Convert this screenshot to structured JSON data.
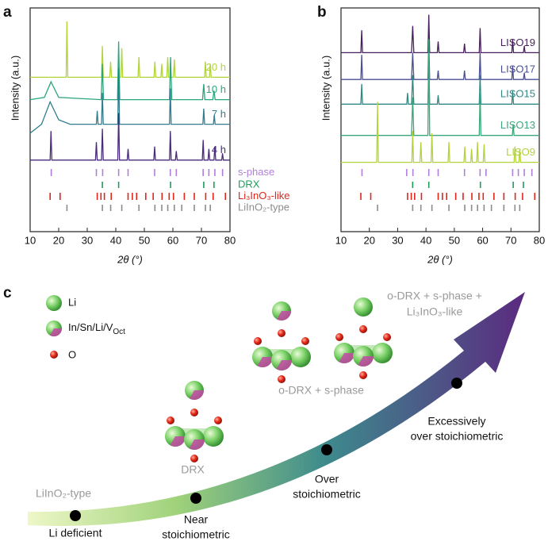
{
  "chart_data": [
    {
      "type": "line",
      "panel_label": "a",
      "xlabel": "2θ (°)",
      "ylabel": "Intensity (a.u.)",
      "xlim": [
        10,
        80
      ],
      "xticks": [
        10,
        20,
        30,
        40,
        50,
        60,
        70,
        80
      ],
      "ylim": [
        0,
        100
      ],
      "series": [
        {
          "name": "20 h",
          "color": "#b3d33a",
          "x": [
            10,
            22.6,
            22.9,
            23.2,
            35,
            35.3,
            35.6,
            37.9,
            38.2,
            38.5,
            41.8,
            42.1,
            42.4,
            47.8,
            48.1,
            48.4,
            53.4,
            53.7,
            54,
            55.8,
            56.1,
            56.4,
            57.9,
            58.2,
            58.5,
            60.2,
            60.5,
            60.8,
            71.1,
            71.4,
            71.7,
            72.8,
            73.1,
            73.4,
            80
          ],
          "values": [
            69,
            69,
            94,
            69,
            69,
            83,
            69,
            69,
            76,
            69,
            69,
            82,
            69,
            69,
            78,
            69,
            69,
            76,
            69,
            69,
            75,
            69,
            69,
            78,
            69,
            69,
            77,
            69,
            69,
            76,
            69,
            69,
            75,
            69,
            69
          ]
        },
        {
          "name": "10 h",
          "color": "#29a67a",
          "x": [
            10,
            15,
            17.3,
            20,
            34.9,
            35.3,
            35.7,
            40.6,
            41,
            41.4,
            58.8,
            59.2,
            59.6,
            70.4,
            70.8,
            71.2,
            74,
            74.4,
            74.8,
            80
          ],
          "values": [
            59,
            60,
            67,
            60,
            59,
            75,
            59,
            59,
            85,
            59,
            59,
            78,
            59,
            59,
            66,
            59,
            59,
            63,
            59,
            59
          ]
        },
        {
          "name": "7 h",
          "color": "#2f7d8f",
          "x": [
            10,
            14,
            17,
            20,
            24,
            33.2,
            33.5,
            33.8,
            35,
            35.3,
            35.6,
            40.7,
            41,
            41.3,
            58.8,
            59.1,
            59.4,
            70.5,
            70.8,
            71.1,
            74.2,
            74.5,
            74.8,
            80
          ],
          "values": [
            44,
            48,
            58,
            50,
            48,
            48,
            54,
            48,
            48,
            62,
            48,
            48,
            73,
            48,
            48,
            64,
            48,
            48,
            55,
            48,
            48,
            52,
            48,
            48
          ]
        },
        {
          "name": "4 h",
          "color": "#4a2b7c",
          "x": [
            10,
            17,
            17.3,
            17.6,
            32.9,
            33.2,
            33.5,
            35,
            35.3,
            35.6,
            40.7,
            41,
            41.3,
            44,
            44.3,
            44.6,
            53.3,
            53.6,
            53.9,
            58.8,
            59.1,
            59.4,
            60.9,
            61.2,
            61.5,
            70.3,
            70.6,
            70.9,
            72.3,
            72.6,
            72.9,
            74.4,
            74.7,
            75,
            77.1,
            77.4,
            77.7,
            80
          ],
          "values": [
            32,
            32,
            45,
            32,
            32,
            40,
            32,
            32,
            46,
            32,
            32,
            53,
            32,
            32,
            37,
            32,
            32,
            38,
            32,
            32,
            45,
            32,
            32,
            36,
            32,
            32,
            41,
            32,
            32,
            37,
            32,
            32,
            38,
            32,
            32,
            35,
            32,
            32
          ]
        }
      ],
      "references": [
        {
          "name": "s-phase",
          "color": "#b07fdc",
          "x": [
            17.4,
            33.2,
            35.4,
            41,
            44.3,
            53.6,
            59.1,
            61.2,
            70.6,
            72.6,
            74.7,
            77.4
          ]
        },
        {
          "name": "DRX",
          "color": "#1f9c5a",
          "x": [
            35.3,
            41,
            59.2,
            70.8,
            74.4
          ]
        },
        {
          "name": "Li₃InO₃-like",
          "color": "#e0261b",
          "x": [
            17,
            20.5,
            33.5,
            34.8,
            36,
            38.4,
            44.3,
            45.8,
            47.3,
            50.5,
            53.1,
            56.2,
            58.7,
            60.2,
            64,
            67.5,
            71.5,
            74.1,
            78.4
          ]
        },
        {
          "name": "LiInO₂-type",
          "color": "#8c8c8c",
          "x": [
            22.9,
            35.3,
            38.2,
            42.1,
            48.1,
            53.7,
            56.1,
            58.2,
            60.5,
            63.1,
            67.5,
            71.4,
            73.1
          ]
        }
      ]
    },
    {
      "type": "line",
      "panel_label": "b",
      "xlabel": "2θ (°)",
      "ylabel": "Intensity (a.u.)",
      "xlim": [
        10,
        80
      ],
      "xticks": [
        10,
        20,
        30,
        40,
        50,
        60,
        70,
        80
      ],
      "ylim": [
        0,
        100
      ],
      "series": [
        {
          "name": "LISO19",
          "color": "#4a1f5e",
          "x": [
            10,
            17,
            17.3,
            17.6,
            34.9,
            35.3,
            35.7,
            40.7,
            41,
            41.3,
            44,
            44.3,
            44.6,
            53.3,
            53.6,
            53.9,
            58.8,
            59.1,
            59.4,
            70.3,
            70.6,
            70.9,
            74.4,
            74.7,
            75,
            80
          ],
          "values": [
            80,
            80,
            90,
            80,
            80,
            92,
            80,
            80,
            97,
            80,
            80,
            85,
            80,
            80,
            84,
            80,
            80,
            91,
            80,
            80,
            86,
            80,
            80,
            83,
            80,
            80
          ]
        },
        {
          "name": "LISO17",
          "color": "#4a4f93",
          "x": [
            10,
            17,
            17.3,
            17.6,
            34.9,
            35.3,
            35.7,
            40.7,
            41,
            41.3,
            44,
            44.3,
            44.6,
            53.3,
            53.6,
            53.9,
            58.8,
            59.1,
            59.4,
            70.3,
            70.6,
            70.9,
            74.4,
            74.7,
            75,
            80
          ],
          "values": [
            68,
            68,
            79,
            68,
            68,
            80,
            68,
            68,
            86,
            68,
            68,
            72,
            68,
            68,
            72,
            68,
            68,
            80,
            68,
            68,
            74,
            68,
            68,
            71,
            68,
            68
          ]
        },
        {
          "name": "LISO15",
          "color": "#2f8a86",
          "x": [
            10,
            17,
            17.3,
            17.6,
            33.2,
            33.5,
            33.8,
            34.9,
            35.3,
            35.7,
            40.7,
            41,
            41.3,
            44,
            44.3,
            44.6,
            58.8,
            59.1,
            59.4,
            70.3,
            70.6,
            70.9,
            80
          ],
          "values": [
            57,
            57,
            66,
            57,
            57,
            62,
            57,
            57,
            70,
            57,
            57,
            77,
            57,
            57,
            61,
            57,
            57,
            70,
            57,
            57,
            63,
            57,
            57
          ]
        },
        {
          "name": "LISO13",
          "color": "#3aa87a",
          "x": [
            10,
            34.9,
            35.3,
            35.7,
            40.7,
            41,
            41.3,
            58.8,
            59.1,
            59.4,
            70.5,
            70.8,
            71.1,
            80
          ],
          "values": [
            43,
            43,
            60,
            43,
            43,
            86,
            43,
            43,
            63,
            43,
            43,
            48,
            43,
            43
          ]
        },
        {
          "name": "LISO9",
          "color": "#b3d33a",
          "x": [
            10,
            22.6,
            22.9,
            23.2,
            35,
            35.3,
            35.6,
            37.9,
            38.2,
            38.5,
            41.8,
            42.1,
            42.4,
            47.8,
            48.1,
            48.4,
            53.4,
            53.7,
            54,
            55.8,
            56.1,
            56.4,
            57.9,
            58.2,
            58.5,
            60.2,
            60.5,
            60.8,
            71.1,
            71.4,
            71.7,
            72.8,
            73.1,
            73.4,
            80
          ],
          "values": [
            31,
            31,
            58,
            31,
            31,
            45,
            31,
            31,
            40,
            31,
            31,
            44,
            31,
            31,
            40,
            31,
            31,
            38,
            31,
            31,
            37,
            31,
            31,
            40,
            31,
            31,
            39,
            31,
            31,
            38,
            31,
            31,
            37,
            31,
            31
          ]
        }
      ],
      "references": [
        {
          "color": "#b07fdc",
          "x": [
            17.4,
            33.2,
            35.4,
            41,
            44.3,
            53.6,
            59.1,
            61.2,
            70.6,
            72.6,
            74.7,
            77.4
          ]
        },
        {
          "color": "#1f9c5a",
          "x": [
            35.3,
            41,
            59.2,
            70.8,
            74.4
          ]
        },
        {
          "color": "#e0261b",
          "x": [
            17,
            20.5,
            33.5,
            34.8,
            36,
            38.4,
            44.3,
            45.8,
            47.3,
            50.5,
            53.1,
            56.2,
            58.7,
            60.2,
            64,
            67.5,
            71.5,
            74.1,
            78.4
          ]
        },
        {
          "color": "#8c8c8c",
          "x": [
            22.9,
            35.3,
            38.2,
            42.1,
            48.1,
            53.7,
            56.1,
            58.2,
            60.5,
            63.1,
            67.5,
            71.4,
            73.1
          ]
        }
      ]
    }
  ],
  "diagram": {
    "panel_label": "c",
    "legend": {
      "li": "Li",
      "mixed": "In/Sn/Li/V",
      "mixed_sub": "Oct",
      "o": "O"
    },
    "phases": {
      "liino2": "LiInO₂-type",
      "drx": "DRX",
      "odrx": "o-DRX + s-phase",
      "odrx_li3": [
        "o-DRX + s-phase +",
        "Li₃InO₃-like"
      ]
    },
    "stages": [
      [
        "Li deficient"
      ],
      [
        "Near",
        "stoichiometric"
      ],
      [
        "Over",
        "stoichiometric"
      ],
      [
        "Excessively",
        "over stoichiometric"
      ]
    ]
  }
}
